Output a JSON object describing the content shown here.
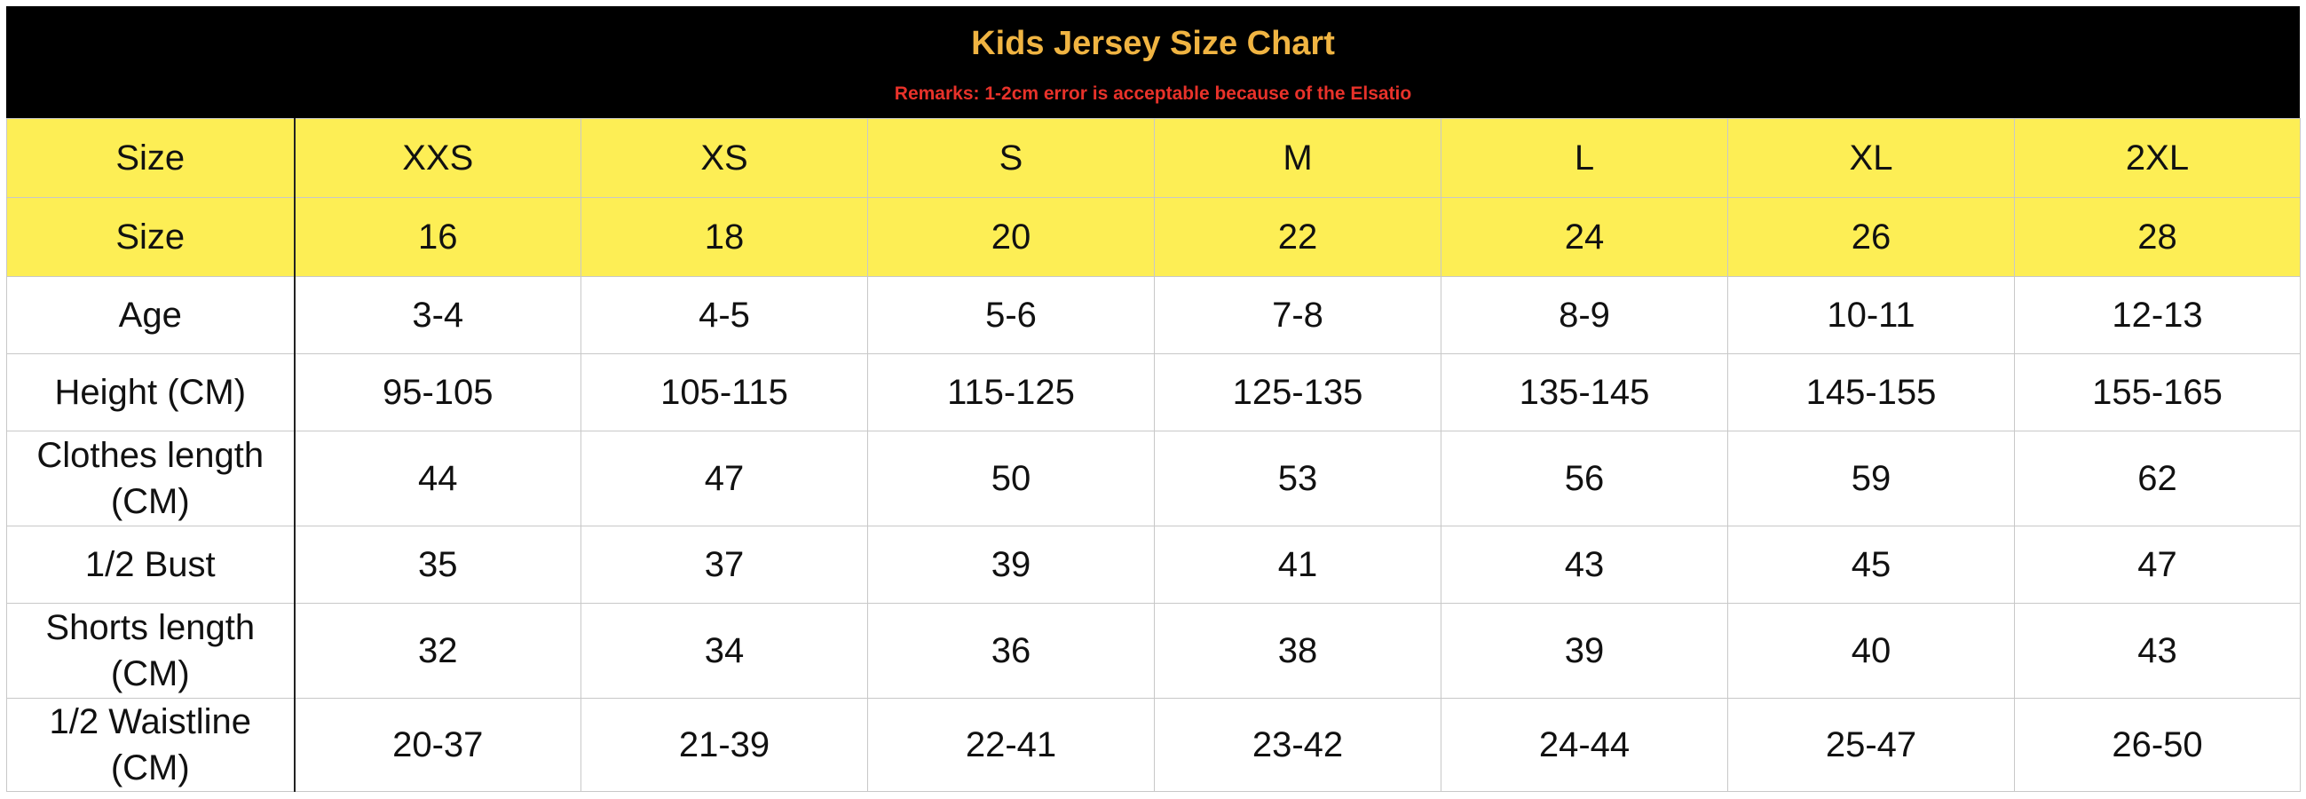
{
  "header": {
    "title": "Kids Jersey Size Chart",
    "remarks": "Remarks: 1-2cm error is acceptable because of the Elsatio"
  },
  "colors": {
    "header_bg": "#000000",
    "title": "#f0b442",
    "remarks": "#e8322a",
    "yellow_row": "#fdee55"
  },
  "rows": [
    {
      "label": "Size",
      "values": [
        "XXS",
        "XS",
        "S",
        "M",
        "L",
        "XL",
        "2XL"
      ]
    },
    {
      "label": "Size",
      "values": [
        "16",
        "18",
        "20",
        "22",
        "24",
        "26",
        "28"
      ]
    },
    {
      "label": "Age",
      "values": [
        "3-4",
        "4-5",
        "5-6",
        "7-8",
        "8-9",
        "10-11",
        "12-13"
      ]
    },
    {
      "label": "Height (CM)",
      "values": [
        "95-105",
        "105-115",
        "115-125",
        "125-135",
        "135-145",
        "145-155",
        "155-165"
      ]
    },
    {
      "label": "Clothes length (CM)",
      "values": [
        "44",
        "47",
        "50",
        "53",
        "56",
        "59",
        "62"
      ]
    },
    {
      "label": "1/2 Bust",
      "values": [
        "35",
        "37",
        "39",
        "41",
        "43",
        "45",
        "47"
      ]
    },
    {
      "label": "Shorts length (CM)",
      "values": [
        "32",
        "34",
        "36",
        "38",
        "39",
        "40",
        "43"
      ]
    },
    {
      "label": "1/2 Waistline (CM)",
      "values": [
        "20-37",
        "21-39",
        "22-41",
        "23-42",
        "24-44",
        "25-47",
        "26-50"
      ]
    }
  ]
}
